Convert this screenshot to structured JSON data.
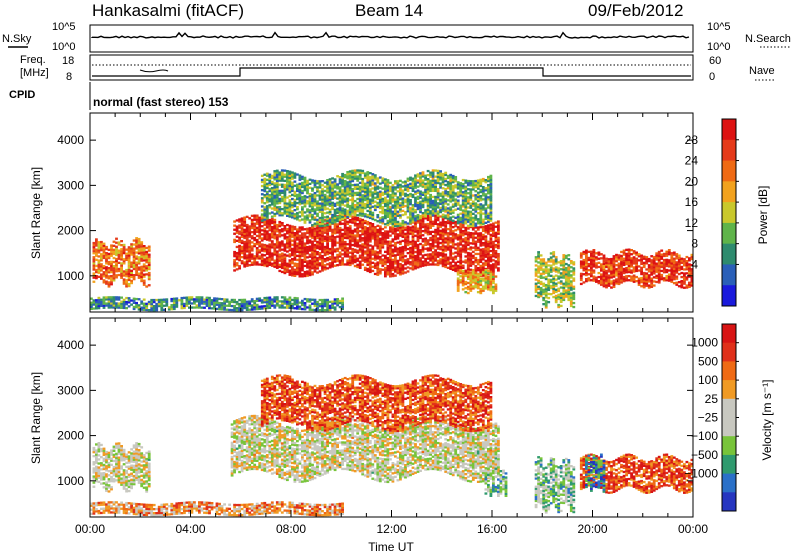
{
  "header": {
    "station": "Hankasalmi (fitACF)",
    "beam": "Beam 14",
    "date": "09/Feb/2012"
  },
  "strip_nsky": {
    "left_label": "N.Sky",
    "right_label": "N.Search",
    "left_ticks": [
      "10^5",
      "10^0"
    ],
    "right_ticks": [
      "10^5",
      "10^0"
    ]
  },
  "strip_freq": {
    "left_label_line1": "Freq.",
    "left_label_line2": "[MHz]",
    "right_label": "Nave",
    "left_ticks": [
      "18",
      "8"
    ],
    "right_ticks": [
      "60",
      "0"
    ]
  },
  "cpid": {
    "label": "CPID",
    "text": "normal (fast stereo) 153"
  },
  "chart_data": [
    {
      "type": "heatmap",
      "panel": "power",
      "ylabel": "Slant Range [km]",
      "ylim": [
        200,
        4600
      ],
      "yticks": [
        "1000",
        "2000",
        "3000",
        "4000"
      ],
      "xlim": [
        0,
        24
      ],
      "colorbar": {
        "label": "Power [dB]",
        "ticks": [
          "28",
          "24",
          "20",
          "16",
          "12",
          "8",
          "4"
        ],
        "colors": [
          "#1a1adc",
          "#2a5fb8",
          "#2e8b6e",
          "#5fb44a",
          "#c9c82c",
          "#f2a21e",
          "#ef6a14",
          "#e53a1a",
          "#dd1212"
        ]
      },
      "blobs": [
        {
          "t0": 0.1,
          "t1": 2.4,
          "r0": 850,
          "r1": 1750,
          "level": 0.75
        },
        {
          "t0": 5.7,
          "t1": 16.2,
          "r0": 1100,
          "r1": 2200,
          "level": 0.95
        },
        {
          "t0": 6.8,
          "t1": 15.9,
          "r0": 2200,
          "r1": 3200,
          "level": 0.35
        },
        {
          "t0": 14.6,
          "t1": 16.1,
          "r0": 650,
          "r1": 1100,
          "level": 0.6
        },
        {
          "t0": 19.5,
          "t1": 24.0,
          "r0": 800,
          "r1": 1500,
          "level": 0.9
        },
        {
          "t0": 17.7,
          "t1": 19.3,
          "r0": 400,
          "r1": 1400,
          "level": 0.45
        },
        {
          "t0": 0.0,
          "t1": 10.0,
          "r0": 250,
          "r1": 500,
          "level": 0.25
        }
      ]
    },
    {
      "type": "heatmap",
      "panel": "velocity",
      "ylabel": "Slant Range [km]",
      "ylim": [
        200,
        4600
      ],
      "yticks": [
        "1000",
        "2000",
        "3000",
        "4000"
      ],
      "xlim": [
        0,
        24
      ],
      "xticks": [
        "00:00",
        "04:00",
        "08:00",
        "12:00",
        "16:00",
        "20:00",
        "00:00"
      ],
      "xlabel": "Time UT",
      "colorbar": {
        "label": "Velocity [m s⁻¹]",
        "ticks": [
          "1000",
          "500",
          "100",
          "25",
          "−25",
          "−100",
          "−500",
          "−1000"
        ],
        "colors": [
          "#2636c0",
          "#2a70c8",
          "#2f9a6e",
          "#78c43a",
          "#c8c8c0",
          "#c8c8c0",
          "#f09a24",
          "#ef6a14",
          "#e0301a",
          "#d81414"
        ]
      },
      "blobs": [
        {
          "t0": 5.6,
          "t1": 16.2,
          "r0": 1100,
          "r1": 2300,
          "level": 0.5
        },
        {
          "t0": 6.8,
          "t1": 15.9,
          "r0": 2200,
          "r1": 3200,
          "level": 0.85
        },
        {
          "t0": 0.1,
          "t1": 2.4,
          "r0": 850,
          "r1": 1750,
          "level": 0.5
        },
        {
          "t0": 15.7,
          "t1": 16.6,
          "r0": 700,
          "r1": 1200,
          "level": 0.3
        },
        {
          "t0": 19.5,
          "t1": 24.0,
          "r0": 800,
          "r1": 1500,
          "level": 0.85
        },
        {
          "t0": 19.7,
          "t1": 20.5,
          "r0": 800,
          "r1": 1500,
          "level": 0.15
        },
        {
          "t0": 17.7,
          "t1": 19.3,
          "r0": 400,
          "r1": 1400,
          "level": 0.35
        },
        {
          "t0": 0.0,
          "t1": 10.0,
          "r0": 250,
          "r1": 500,
          "level": 0.7
        }
      ]
    }
  ]
}
